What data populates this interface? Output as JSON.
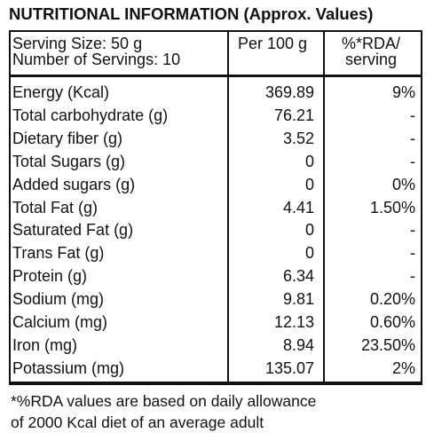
{
  "title": "NUTRITIONAL INFORMATION (Approx. Values)",
  "table": {
    "header": [
      [
        "Serving Size: 50 g",
        "Number of Servings: 10"
      ],
      [
        "Per 100 g"
      ],
      [
        "%*RDA/",
        "serving"
      ]
    ],
    "rows": [
      [
        "Energy (Kcal)",
        "369.89",
        "9%"
      ],
      [
        "Total carbohydrate (g)",
        "76.21",
        "-"
      ],
      [
        "Dietary fiber (g)",
        "3.52",
        "-"
      ],
      [
        "Total Sugars (g)",
        "0",
        "-"
      ],
      [
        "Added sugars (g)",
        "0",
        "0%"
      ],
      [
        "Total Fat (g)",
        "4.41",
        "1.50%"
      ],
      [
        "Saturated Fat (g)",
        "0",
        "-"
      ],
      [
        "Trans Fat (g)",
        "0",
        "-"
      ],
      [
        "Protein (g)",
        "6.34",
        "-"
      ],
      [
        "Sodium (mg)",
        "9.81",
        "0.20%"
      ],
      [
        "Calcium (mg)",
        "12.13",
        "0.60%"
      ],
      [
        "Iron (mg)",
        "8.94",
        "23.50%"
      ],
      [
        "Potassium (mg)",
        "135.07",
        "2%"
      ]
    ]
  },
  "footnote": [
    "*%RDA values are based on daily allowance",
    "of 2000 Kcal diet of an average adult"
  ]
}
